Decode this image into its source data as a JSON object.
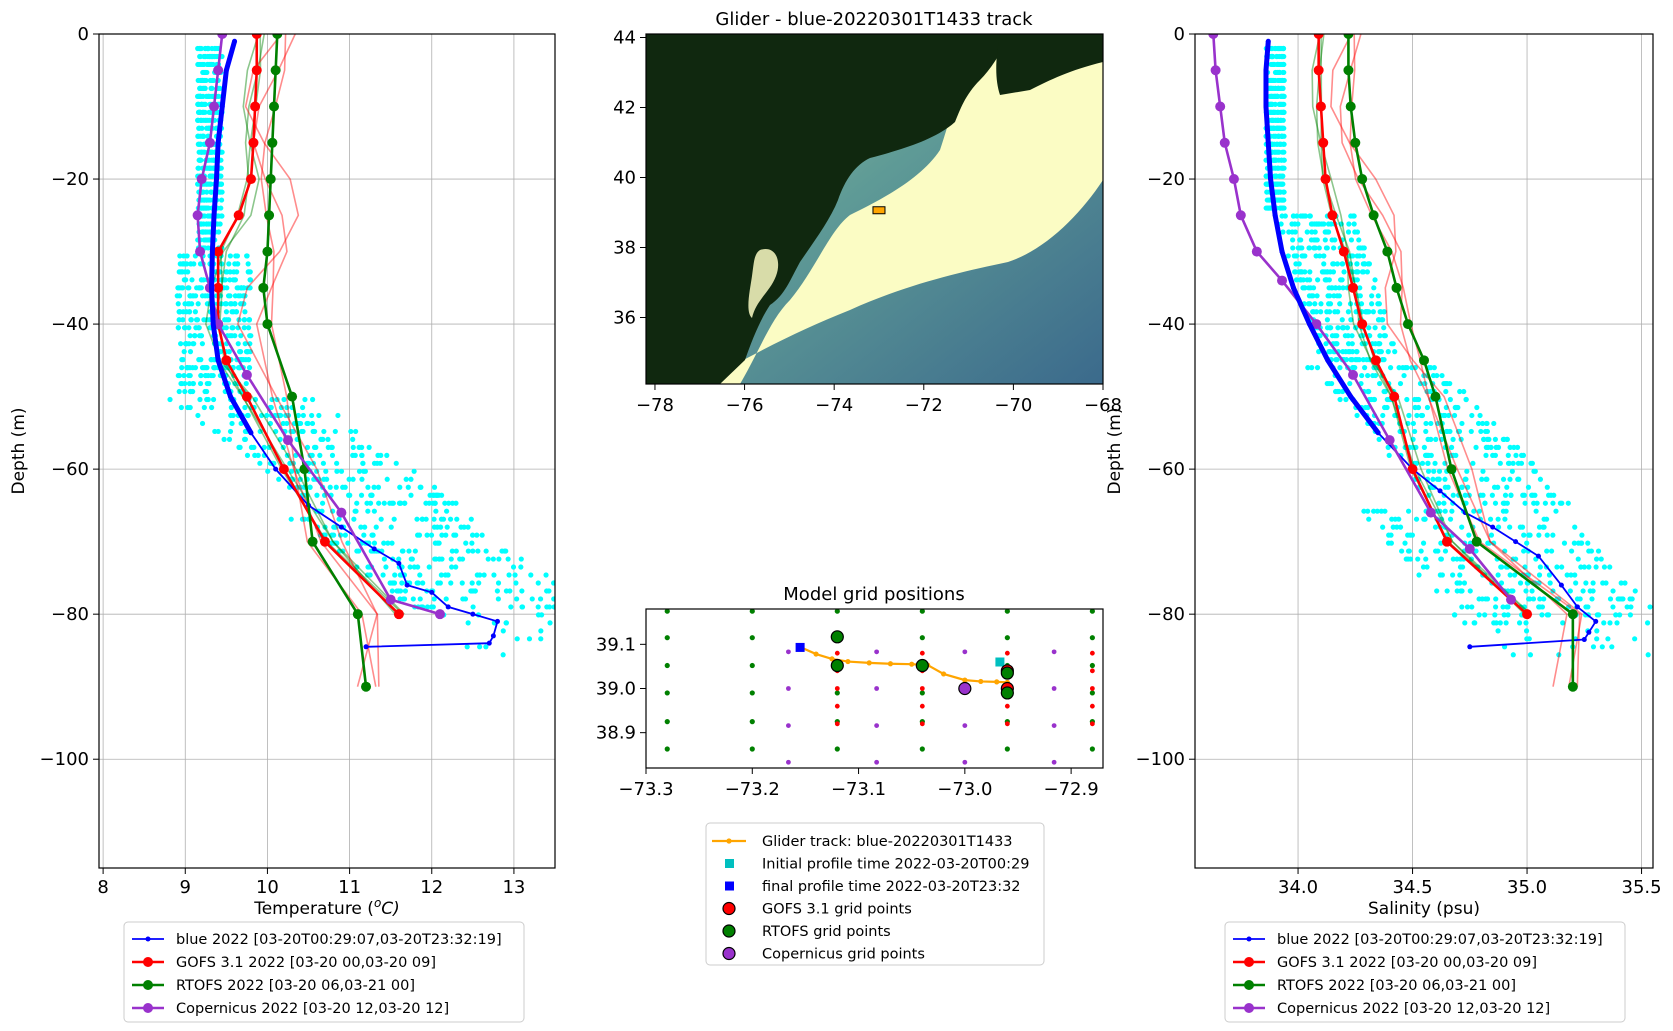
{
  "colors": {
    "blue": "#0000ff",
    "gofs": "#ff0000",
    "rtofs": "#008000",
    "copernicus": "#9932cc",
    "cyan": "#00ffff",
    "track": "#ffa500",
    "initial": "#00bfbf",
    "final": "#0000ff",
    "grid": "#b0b0b0",
    "land": "#10280f",
    "shelf": "#fbfcc4",
    "deep": "#3d6b8a"
  },
  "temperature_panel": {
    "xlabel_prefix": "Temperature (",
    "xlabel_sup": "o",
    "xlabel_suffix": "C)",
    "ylabel": "Depth (m)",
    "xticks": [
      "8",
      "9",
      "10",
      "11",
      "12",
      "13"
    ],
    "yticks": [
      "0",
      "−20",
      "−40",
      "−60",
      "−80",
      "−100"
    ]
  },
  "salinity_panel": {
    "xlabel": "Salinity (psu)",
    "ylabel": "Depth (m)",
    "xticks": [
      "34.0",
      "34.5",
      "35.0",
      "35.5"
    ],
    "yticks": [
      "0",
      "−20",
      "−40",
      "−60",
      "−80",
      "−100"
    ]
  },
  "profile_legend": [
    "blue 2022 [03-20T00:29:07,03-20T23:32:19]",
    "GOFS 3.1 2022 [03-20 00,03-20 09]",
    "RTOFS 2022 [03-20 06,03-21 00]",
    "Copernicus 2022 [03-20 12,03-20 12]"
  ],
  "map_panel": {
    "title": "Glider - blue-20220301T1433 track",
    "xticks": [
      "−78",
      "−76",
      "−74",
      "−72",
      "−70",
      "−68"
    ],
    "yticks": [
      "36",
      "38",
      "40",
      "42",
      "44"
    ]
  },
  "grid_panel": {
    "title": "Model grid positions",
    "xticks": [
      "−73.3",
      "−73.2",
      "−73.1",
      "−73.0",
      "−72.9"
    ],
    "yticks": [
      "39.1",
      "39.0",
      "38.9"
    ]
  },
  "grid_legend": [
    "Glider track: blue-20220301T1433",
    "Initial profile time 2022-03-20T00:29",
    "final profile time 2022-03-20T23:32",
    "GOFS 3.1 grid points",
    "RTOFS grid points",
    "Copernicus grid points"
  ],
  "chart_data": [
    {
      "type": "line",
      "xlabel": "Temperature (oC)",
      "ylabel": "Depth (m)",
      "xlim": [
        7.95,
        13.5
      ],
      "ylim": [
        -115,
        0
      ],
      "grid": true,
      "legend": "below",
      "series": [
        {
          "name": "blue 2022 [03-20T00:29:07,03-20T23:32:19]",
          "x": [
            9.6,
            9.5,
            9.45,
            9.4,
            9.38,
            9.35,
            9.33,
            9.32,
            9.34,
            9.4,
            9.55,
            9.8,
            10.1,
            10.5,
            10.9,
            11.3,
            11.6,
            11.7,
            12.0,
            12.2,
            12.5,
            12.8,
            12.75,
            12.7,
            11.2
          ],
          "y": [
            -1,
            -5,
            -10,
            -15,
            -20,
            -25,
            -30,
            -35,
            -40,
            -45,
            -50,
            -55,
            -60,
            -65,
            -68,
            -71,
            -73,
            -76,
            -77,
            -79,
            -80,
            -81,
            -83,
            -84,
            -84.5
          ]
        },
        {
          "name": "GOFS 3.1 2022 [03-20 00,03-20 09]",
          "x": [
            9.87,
            9.87,
            9.85,
            9.83,
            9.8,
            9.65,
            9.4,
            9.4,
            9.4,
            9.5,
            9.75,
            10.2,
            10.7,
            11.6
          ],
          "y": [
            0,
            -5,
            -10,
            -15,
            -20,
            -25,
            -30,
            -35,
            -40,
            -45,
            -50,
            -60,
            -70,
            -80
          ]
        },
        {
          "name": "RTOFS 2022 [03-20 06,03-21 00]",
          "x": [
            10.12,
            10.1,
            10.08,
            10.06,
            10.04,
            10.02,
            10.0,
            9.95,
            10.0,
            10.3,
            10.45,
            10.55,
            11.1,
            11.2
          ],
          "y": [
            0,
            -5,
            -10,
            -15,
            -20,
            -25,
            -30,
            -35,
            -40,
            -50,
            -60,
            -70,
            -80,
            -90
          ]
        },
        {
          "name": "Copernicus 2022 [03-20 12,03-20 12]",
          "x": [
            9.45,
            9.4,
            9.35,
            9.3,
            9.2,
            9.15,
            9.18,
            9.3,
            9.4,
            9.75,
            10.25,
            10.9,
            11.5,
            12.1
          ],
          "y": [
            0,
            -5,
            -10,
            -15,
            -20,
            -25,
            -30,
            -35,
            -40,
            -47,
            -56,
            -66,
            -78,
            -80
          ]
        }
      ]
    },
    {
      "type": "map",
      "title": "Glider - blue-20220301T1433 track",
      "xlim": [
        -78.2,
        -68
      ],
      "ylim": [
        34.1,
        44.1
      ],
      "track_point": [
        -73.0,
        39.05
      ]
    },
    {
      "type": "scatter",
      "title": "Model grid positions",
      "xlim": [
        -73.3,
        -72.87
      ],
      "ylim": [
        38.82,
        39.18
      ],
      "series": [
        {
          "name": "Glider track: blue-20220301T1433",
          "x": [
            -73.155,
            -73.14,
            -73.125,
            -73.11,
            -73.09,
            -73.07,
            -73.05,
            -73.035,
            -73.02,
            -73.0,
            -72.985,
            -72.97,
            -72.96
          ],
          "y": [
            39.094,
            39.078,
            39.067,
            39.061,
            39.058,
            39.056,
            39.055,
            39.053,
            39.033,
            39.019,
            39.016,
            39.015,
            39.014
          ]
        },
        {
          "name": "Initial profile time 2022-03-20T00:29",
          "x": [
            -72.967
          ],
          "y": [
            39.06
          ]
        },
        {
          "name": "final profile time 2022-03-20T23:32",
          "x": [
            -73.155
          ],
          "y": [
            39.093
          ]
        },
        {
          "name": "GOFS 3.1 grid points",
          "x": [
            -72.96,
            -72.96
          ],
          "y": [
            39.04,
            39.0
          ]
        },
        {
          "name": "RTOFS grid points",
          "x": [
            -73.12,
            -73.12,
            -73.04,
            -72.96,
            -72.96
          ],
          "y": [
            39.117,
            39.052,
            39.052,
            39.035,
            38.99
          ]
        },
        {
          "name": "Copernicus grid points",
          "x": [
            -73.0
          ],
          "y": [
            39.0
          ]
        }
      ]
    },
    {
      "type": "line",
      "xlabel": "Salinity (psu)",
      "ylabel": "Depth (m)",
      "xlim": [
        33.55,
        35.55
      ],
      "ylim": [
        -115,
        0
      ],
      "grid": true,
      "legend": "below",
      "series": [
        {
          "name": "blue 2022 [03-20T00:29:07,03-20T23:32:19]",
          "x": [
            33.87,
            33.86,
            33.86,
            33.87,
            33.88,
            33.9,
            33.93,
            33.98,
            34.05,
            34.13,
            34.23,
            34.35,
            34.5,
            34.62,
            34.73,
            34.85,
            34.95,
            35.05,
            35.15,
            35.22,
            35.3,
            35.27,
            35.25,
            34.75
          ],
          "y": [
            -1,
            -5,
            -10,
            -15,
            -20,
            -25,
            -30,
            -35,
            -40,
            -45,
            -50,
            -55,
            -60,
            -63,
            -66,
            -68,
            -70,
            -72,
            -76,
            -79,
            -81,
            -82.5,
            -83.5,
            -84.5
          ]
        },
        {
          "name": "GOFS 3.1 2022 [03-20 00,03-20 09]",
          "x": [
            34.09,
            34.09,
            34.1,
            34.11,
            34.12,
            34.15,
            34.2,
            34.24,
            34.28,
            34.34,
            34.42,
            34.5,
            34.65,
            35.0
          ],
          "y": [
            0,
            -5,
            -10,
            -15,
            -20,
            -25,
            -30,
            -35,
            -40,
            -45,
            -50,
            -60,
            -70,
            -80
          ]
        },
        {
          "name": "RTOFS 2022 [03-20 06,03-21 00]",
          "x": [
            34.22,
            34.22,
            34.23,
            34.25,
            34.28,
            34.33,
            34.39,
            34.43,
            34.48,
            34.55,
            34.6,
            34.67,
            34.78,
            35.2,
            35.2
          ],
          "y": [
            0,
            -5,
            -10,
            -15,
            -20,
            -25,
            -30,
            -35,
            -40,
            -45,
            -50,
            -60,
            -70,
            -80,
            -90
          ]
        },
        {
          "name": "Copernicus 2022 [03-20 12,03-20 12]",
          "x": [
            33.63,
            33.64,
            33.66,
            33.68,
            33.72,
            33.75,
            33.82,
            33.93,
            34.08,
            34.24,
            34.4,
            34.58,
            34.75,
            34.93
          ],
          "y": [
            0,
            -5,
            -10,
            -15,
            -20,
            -25,
            -30,
            -34,
            -40,
            -47,
            -56,
            -66,
            -71,
            -78
          ]
        }
      ]
    }
  ]
}
